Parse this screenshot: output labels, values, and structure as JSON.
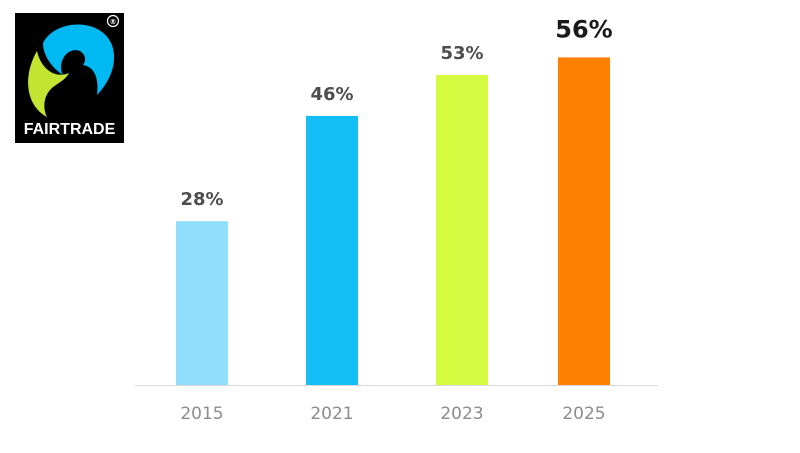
{
  "logo": {
    "name": "FAIRTRADE",
    "registered_mark": "®",
    "colors": {
      "background": "#000000",
      "blue": "#00b9f2",
      "green": "#c3e532",
      "text": "#ffffff"
    }
  },
  "chart_data": {
    "type": "bar",
    "categories": [
      "2015",
      "2021",
      "2023",
      "2025"
    ],
    "values": [
      28,
      46,
      53,
      56
    ],
    "value_labels": [
      "28%",
      "46%",
      "53%",
      "56%"
    ],
    "bar_colors": [
      "#8fdffc",
      "#14bff8",
      "#d5fb40",
      "#fd8003"
    ],
    "title": "",
    "xlabel": "",
    "ylabel": "",
    "ylim": [
      0,
      60
    ],
    "grid": false,
    "legend": "none",
    "emphasized_index": 3
  }
}
